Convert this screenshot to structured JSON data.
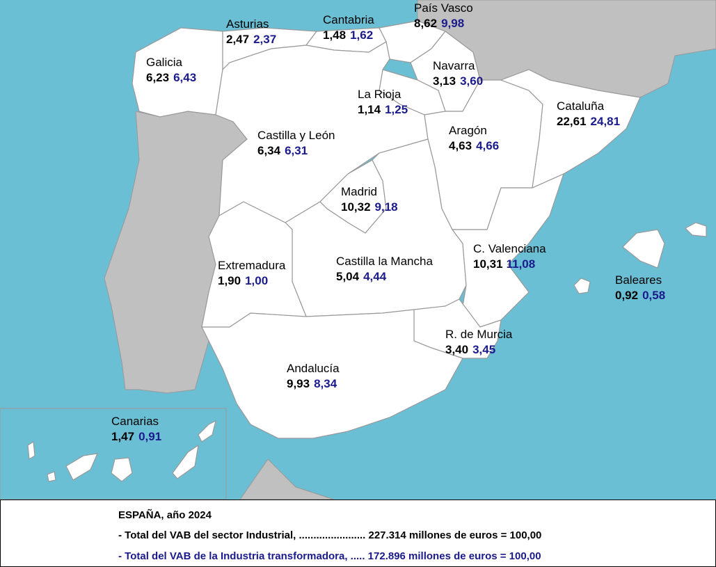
{
  "regions": [
    {
      "name": "Galicia",
      "total": "6,23",
      "transformadora": "6,43"
    },
    {
      "name": "Asturias",
      "total": "2,47",
      "transformadora": "2,37"
    },
    {
      "name": "Cantabria",
      "total": "1,48",
      "transformadora": "1,62"
    },
    {
      "name": "País Vasco",
      "total": "8,62",
      "transformadora": "9,98"
    },
    {
      "name": "Navarra",
      "total": "3,13",
      "transformadora": "3,60"
    },
    {
      "name": "La Rioja",
      "total": "1,14",
      "transformadora": "1,25"
    },
    {
      "name": "Castilla y León",
      "total": "6,34",
      "transformadora": "6,31"
    },
    {
      "name": "Aragón",
      "total": "4,63",
      "transformadora": "4,66"
    },
    {
      "name": "Cataluña",
      "total": "22,61",
      "transformadora": "24,81"
    },
    {
      "name": "Madrid",
      "total": "10,32",
      "transformadora": "9,18"
    },
    {
      "name": "Castilla la Mancha",
      "total": "5,04",
      "transformadora": "4,44"
    },
    {
      "name": "C. Valenciana",
      "total": "10,31",
      "transformadora": "11,08"
    },
    {
      "name": "Extremadura",
      "total": "1,90",
      "transformadora": "1,00"
    },
    {
      "name": "Baleares",
      "total": "0,92",
      "transformadora": "0,58"
    },
    {
      "name": "R. de Murcia",
      "total": "3,40",
      "transformadora": "3,45"
    },
    {
      "name": "Andalucía",
      "total": "9,93",
      "transformadora": "8,34"
    },
    {
      "name": "Canarias",
      "total": "1,47",
      "transformadora": "0,91"
    }
  ],
  "footer": {
    "title": "ESPAÑA, año 2024",
    "line1": "- Total del VAB del sector Industrial, ....................... 227.314 millones de euros = 100,00",
    "line2": "- Total del VAB de la Industria transformadora, ..... 172.896 millones de euros = 100,00"
  }
}
